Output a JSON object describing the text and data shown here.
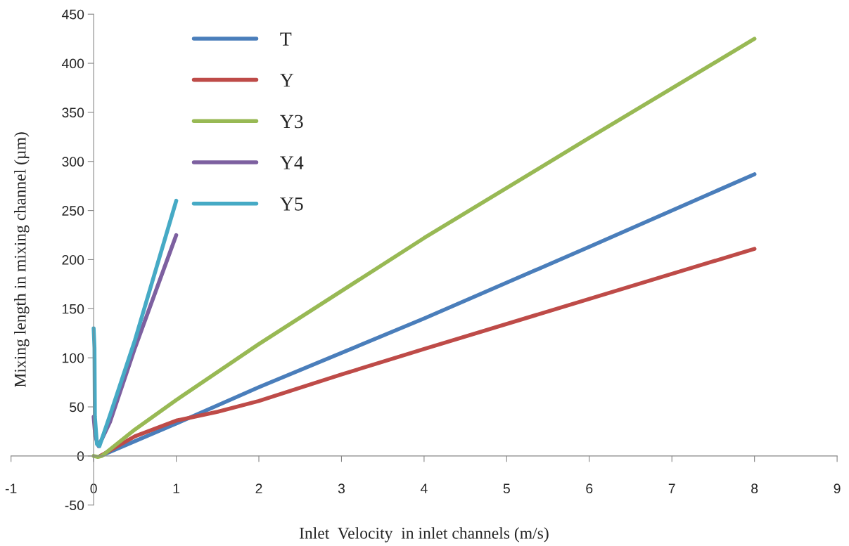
{
  "chart_data": {
    "type": "line",
    "xlabel": "Inlet  Velocity  in inlet channels (m/s)",
    "ylabel": "Mixing length in mixing channel (µm)",
    "xlim": [
      -1,
      9
    ],
    "ylim": [
      -50,
      450
    ],
    "xticks": [
      -1,
      0,
      1,
      2,
      3,
      4,
      5,
      6,
      7,
      8,
      9
    ],
    "yticks": [
      -50,
      0,
      50,
      100,
      150,
      200,
      250,
      300,
      350,
      400,
      450
    ],
    "grid": false,
    "legend": "top",
    "marker": "none",
    "line_style": "solid",
    "series": [
      {
        "name": "T",
        "color": "#4a7ebb",
        "x": [
          0.08,
          1,
          2,
          4,
          6,
          8
        ],
        "values": [
          0,
          33,
          70,
          140,
          213,
          287
        ]
      },
      {
        "name": "Y",
        "color": "#be4b48",
        "x": [
          0.08,
          0.5,
          1,
          1.5,
          2,
          3,
          4,
          6,
          8
        ],
        "values": [
          0,
          20,
          36,
          45,
          56,
          83,
          109,
          160,
          211
        ]
      },
      {
        "name": "Y3",
        "color": "#98b954",
        "x": [
          0,
          0.05,
          0.1,
          0.5,
          1,
          2,
          4,
          6,
          8
        ],
        "values": [
          0,
          -1,
          0,
          27,
          57,
          114,
          222,
          324,
          425
        ]
      },
      {
        "name": "Y4",
        "color": "#7d60a0",
        "x": [
          0,
          0.02,
          0.06,
          0.2,
          0.5,
          1
        ],
        "values": [
          40,
          20,
          10,
          35,
          110,
          225
        ]
      },
      {
        "name": "Y5",
        "color": "#46aac5",
        "x": [
          0,
          0.01,
          0.015,
          0.04,
          0.07,
          0.2,
          0.5,
          1
        ],
        "values": [
          130,
          110,
          40,
          12,
          10,
          42,
          118,
          260
        ]
      }
    ]
  }
}
